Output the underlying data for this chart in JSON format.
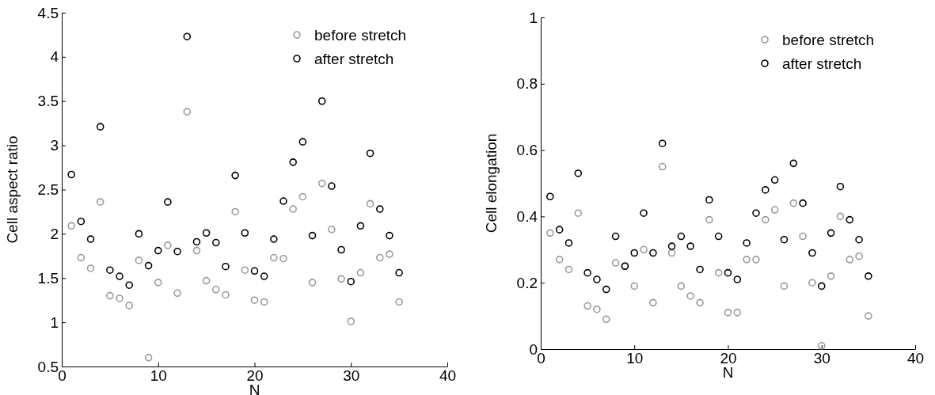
{
  "chart_data": [
    {
      "type": "scatter",
      "xlabel": "N",
      "ylabel": "Cell aspect ratio",
      "x": [
        1,
        2,
        3,
        4,
        5,
        6,
        7,
        8,
        9,
        10,
        11,
        12,
        13,
        14,
        15,
        16,
        17,
        18,
        19,
        20,
        21,
        22,
        23,
        24,
        25,
        26,
        27,
        28,
        29,
        30,
        31,
        32,
        33,
        34,
        35
      ],
      "xlim": [
        0,
        40
      ],
      "xticks": [
        0,
        10,
        20,
        30,
        40
      ],
      "ylim": [
        0.5,
        4.5
      ],
      "yticks": [
        0.5,
        1,
        1.5,
        2,
        2.5,
        3,
        3.5,
        4,
        4.5
      ],
      "marker": "circle",
      "legend": "top right",
      "grid": false,
      "series": [
        {
          "name": "before stretch",
          "color": "#999999",
          "values": [
            2.09,
            1.73,
            1.61,
            2.36,
            1.3,
            1.27,
            1.19,
            1.7,
            0.6,
            1.45,
            1.87,
            1.33,
            3.38,
            1.81,
            1.47,
            1.37,
            1.31,
            2.25,
            1.59,
            1.25,
            1.23,
            1.73,
            1.72,
            2.28,
            2.42,
            1.45,
            2.57,
            2.05,
            1.49,
            1.01,
            1.56,
            2.34,
            1.73,
            1.77,
            1.23
          ]
        },
        {
          "name": "after stretch",
          "color": "#000000",
          "values": [
            2.67,
            2.14,
            1.94,
            3.21,
            1.59,
            1.52,
            1.42,
            2.0,
            1.64,
            1.81,
            2.36,
            1.8,
            4.23,
            1.91,
            2.01,
            1.9,
            1.63,
            2.66,
            2.01,
            1.58,
            1.52,
            1.94,
            2.37,
            2.81,
            3.04,
            1.98,
            3.5,
            2.54,
            1.82,
            1.46,
            2.09,
            2.91,
            2.28,
            1.98,
            1.56
          ]
        }
      ]
    },
    {
      "type": "scatter",
      "xlabel": "N",
      "ylabel": "Cell elongation",
      "x": [
        1,
        2,
        3,
        4,
        5,
        6,
        7,
        8,
        9,
        10,
        11,
        12,
        13,
        14,
        15,
        16,
        17,
        18,
        19,
        20,
        21,
        22,
        23,
        24,
        25,
        26,
        27,
        28,
        29,
        30,
        31,
        32,
        33,
        34,
        35
      ],
      "xlim": [
        0,
        40
      ],
      "xticks": [
        0,
        10,
        20,
        30,
        40
      ],
      "ylim": [
        0,
        1
      ],
      "yticks": [
        0,
        0.2,
        0.4,
        0.6,
        0.8,
        1
      ],
      "marker": "circle",
      "legend": "top right",
      "grid": false,
      "series": [
        {
          "name": "before stretch",
          "color": "#999999",
          "values": [
            0.35,
            0.27,
            0.24,
            0.41,
            0.13,
            0.12,
            0.09,
            0.26,
            0.25,
            0.19,
            0.3,
            0.14,
            0.55,
            0.29,
            0.19,
            0.16,
            0.14,
            0.39,
            0.23,
            0.11,
            0.11,
            0.27,
            0.27,
            0.39,
            0.42,
            0.19,
            0.44,
            0.34,
            0.2,
            0.01,
            0.22,
            0.4,
            0.27,
            0.28,
            0.1
          ]
        },
        {
          "name": "after stretch",
          "color": "#000000",
          "values": [
            0.46,
            0.36,
            0.32,
            0.53,
            0.23,
            0.21,
            0.18,
            0.34,
            0.25,
            0.29,
            0.41,
            0.29,
            0.62,
            0.31,
            0.34,
            0.31,
            0.24,
            0.45,
            0.34,
            0.23,
            0.21,
            0.32,
            0.41,
            0.48,
            0.51,
            0.33,
            0.56,
            0.44,
            0.29,
            0.19,
            0.35,
            0.49,
            0.39,
            0.33,
            0.22
          ]
        }
      ]
    }
  ]
}
